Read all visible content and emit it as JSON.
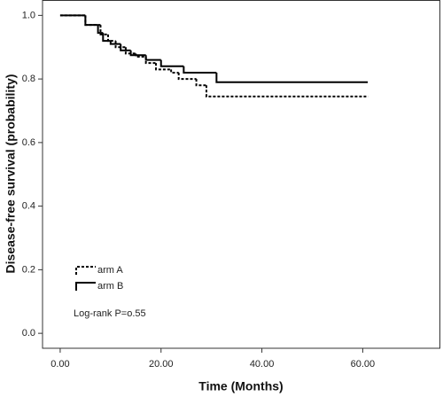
{
  "chart_data": {
    "type": "line",
    "step": "post",
    "x_label": "Time (Months)",
    "y_label": "Disease-free survival (probability)",
    "annotation": "Log-rank P=o.55",
    "xlim": [
      -3.5,
      75.3
    ],
    "ylim": [
      -0.047,
      1.047
    ],
    "xticks": [
      {
        "value": 0,
        "label": "0.00"
      },
      {
        "value": 20,
        "label": "20.00"
      },
      {
        "value": 40,
        "label": "40.00"
      },
      {
        "value": 60,
        "label": "60.00"
      }
    ],
    "yticks": [
      {
        "value": 0,
        "label": "0.0"
      },
      {
        "value": 0.2,
        "label": "0.2"
      },
      {
        "value": 0.4,
        "label": "0.4"
      },
      {
        "value": 0.6,
        "label": "0.6"
      },
      {
        "value": 0.8,
        "label": "0.8"
      },
      {
        "value": 1,
        "label": "1.0"
      }
    ],
    "legend": "lower left",
    "series": [
      {
        "name": "arm A",
        "color": "#000000",
        "dash": true,
        "x": [
          0,
          5,
          8,
          9.5,
          11,
          13,
          15,
          17,
          19,
          22,
          23.5,
          27,
          29,
          61
        ],
        "values": [
          1.0,
          0.97,
          0.94,
          0.92,
          0.9,
          0.88,
          0.87,
          0.85,
          0.83,
          0.82,
          0.8,
          0.78,
          0.745,
          0.745
        ]
      },
      {
        "name": "arm B",
        "color": "#000000",
        "dash": false,
        "x": [
          0,
          5,
          7.5,
          8.5,
          10,
          12,
          14,
          17,
          20,
          24.5,
          31,
          61
        ],
        "values": [
          1.0,
          0.97,
          0.945,
          0.92,
          0.91,
          0.89,
          0.875,
          0.86,
          0.84,
          0.82,
          0.79,
          0.79
        ]
      }
    ]
  }
}
